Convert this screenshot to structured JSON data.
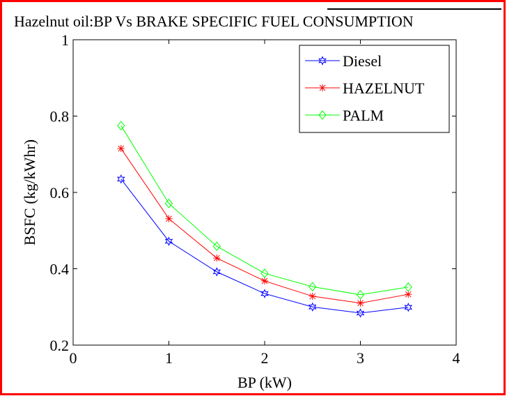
{
  "chart_data": {
    "type": "line",
    "title": "Hazelnut oil:BP Vs BRAKE SPECIFIC FUEL CONSUMPTION",
    "x_label": "BP (kW)",
    "y_label": "BSFC (kg/kWhr)",
    "x": [
      0.5,
      1,
      1.5,
      2,
      2.5,
      3,
      3.5
    ],
    "series": [
      {
        "name": "Diesel",
        "color": "#0000ff",
        "marker": "hexagram",
        "values": [
          0.635,
          0.472,
          0.392,
          0.335,
          0.3,
          0.284,
          0.299
        ]
      },
      {
        "name": "HAZELNUT",
        "color": "#ff0000",
        "marker": "star",
        "values": [
          0.715,
          0.531,
          0.428,
          0.368,
          0.328,
          0.31,
          0.333
        ]
      },
      {
        "name": "PALM",
        "color": "#00ff00",
        "marker": "diamond",
        "values": [
          0.775,
          0.571,
          0.459,
          0.388,
          0.353,
          0.332,
          0.352
        ]
      }
    ],
    "xlim": [
      0,
      4
    ],
    "xticks": [
      0,
      1,
      2,
      3,
      4
    ],
    "ylim": [
      0.2,
      1
    ],
    "yticks": [
      0.2,
      0.4,
      0.6,
      0.8,
      1
    ],
    "legend": "northeast",
    "grid": false
  }
}
